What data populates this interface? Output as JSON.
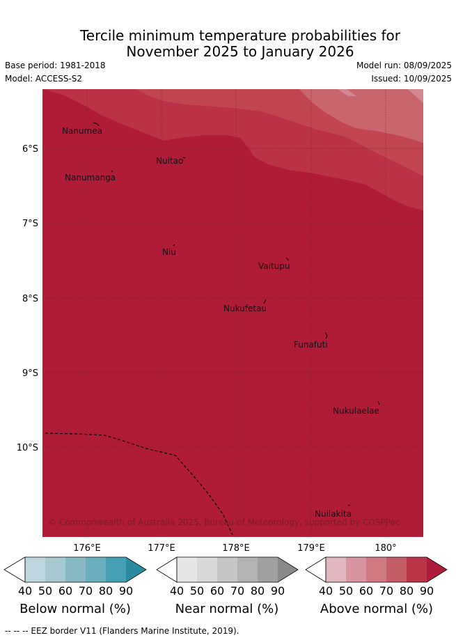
{
  "header": {
    "title_line1": "Tercile minimum temperature probabilities for",
    "title_line2": "November 2025 to January 2026",
    "base_period": "Base period: 1981-2018",
    "model": "Model: ACCESS-S2",
    "model_run": "Model run: 08/09/2025",
    "issued": "Issued: 10/09/2025"
  },
  "map": {
    "lat_labels": [
      "6°S",
      "7°S",
      "8°S",
      "9°S",
      "10°S"
    ],
    "lon_labels": [
      "176°E",
      "177°E",
      "178°E",
      "179°E",
      "180°"
    ],
    "places": [
      "Nanumea",
      "Nuitao",
      "Nanumanga",
      "Niu",
      "Vaitupu",
      "Nukufetau",
      "Funafuti",
      "Nukulaelae",
      "Nuilakita"
    ],
    "copyright": "© Commonwealth of Australia 2025, Bureau of Meteorology, supported by COSPPac",
    "fill_colors": {
      "above_90": "#b01c37",
      "above_80": "#bb3147",
      "above_70": "#c24652",
      "above_60": "#c8656f",
      "above_50": "#d38890"
    }
  },
  "colorbars": [
    {
      "title": "Below normal (%)",
      "ticks": [
        "40",
        "50",
        "60",
        "70",
        "80",
        "90"
      ],
      "colors": [
        "#ffffff",
        "#bed6dd",
        "#a6c8cf",
        "#89b8c5",
        "#6aaebe",
        "#46a0b3",
        "#2b8ba0"
      ]
    },
    {
      "title": "Near normal (%)",
      "ticks": [
        "40",
        "50",
        "60",
        "70",
        "80",
        "90"
      ],
      "colors": [
        "#ffffff",
        "#e6e6e6",
        "#d8d8d8",
        "#c6c6c6",
        "#b3b3b3",
        "#a0a0a0",
        "#8a8a8a"
      ]
    },
    {
      "title": "Above normal (%)",
      "ticks": [
        "40",
        "50",
        "60",
        "70",
        "80",
        "90"
      ],
      "colors": [
        "#ffffff",
        "#e2b8c0",
        "#d8959f",
        "#cf7a83",
        "#c35d68",
        "#b93446",
        "#ae1c3a"
      ]
    }
  ],
  "footer": "-- -- -- EEZ border V11 (Flanders Marine Institute, 2019)."
}
